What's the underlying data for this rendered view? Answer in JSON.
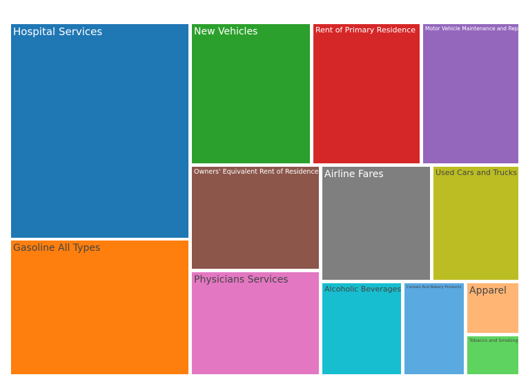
{
  "chart_data": {
    "type": "treemap",
    "tiles": [
      {
        "label": "Hospital Services",
        "value": 79000,
        "color": "#1f77b4",
        "text_color": "#ffffff"
      },
      {
        "label": "Gasoline All Types",
        "value": 50000,
        "color": "#ff7f0e",
        "text_color": "#444444"
      },
      {
        "label": "New Vehicles",
        "value": 32000,
        "color": "#2ca02c",
        "text_color": "#ffffff"
      },
      {
        "label": "Rent of Primary Residence",
        "value": 27000,
        "color": "#d62728",
        "text_color": "#ffffff"
      },
      {
        "label": "Motor Vehicle Maintenance and Repair",
        "value": 24000,
        "color": "#9467bd",
        "text_color": "#ffffff"
      },
      {
        "label": "Owners' Equivalent Rent of Residences",
        "value": 19000,
        "color": "#8c564b",
        "text_color": "#ffffff"
      },
      {
        "label": "Physicians Services",
        "value": 18000,
        "color": "#e377c2",
        "text_color": "#444444"
      },
      {
        "label": "Airline Fares",
        "value": 18000,
        "color": "#7f7f7f",
        "text_color": "#ffffff"
      },
      {
        "label": "Used Cars and Trucks",
        "value": 17000,
        "color": "#bcbd22",
        "text_color": "#444444"
      },
      {
        "label": "Alcoholic Beverages",
        "value": 13000,
        "color": "#17becf",
        "text_color": "#444444"
      },
      {
        "label": "Cereals And Bakery Products",
        "value": 9800,
        "color": "#5aa9e0",
        "text_color": "#444444"
      },
      {
        "label": "Apparel",
        "value": 5600,
        "color": "#ffb574",
        "text_color": "#444444"
      },
      {
        "label": "Tobacco and Smoking",
        "value": 4300,
        "color": "#5fd35f",
        "text_color": "#444444"
      }
    ]
  }
}
